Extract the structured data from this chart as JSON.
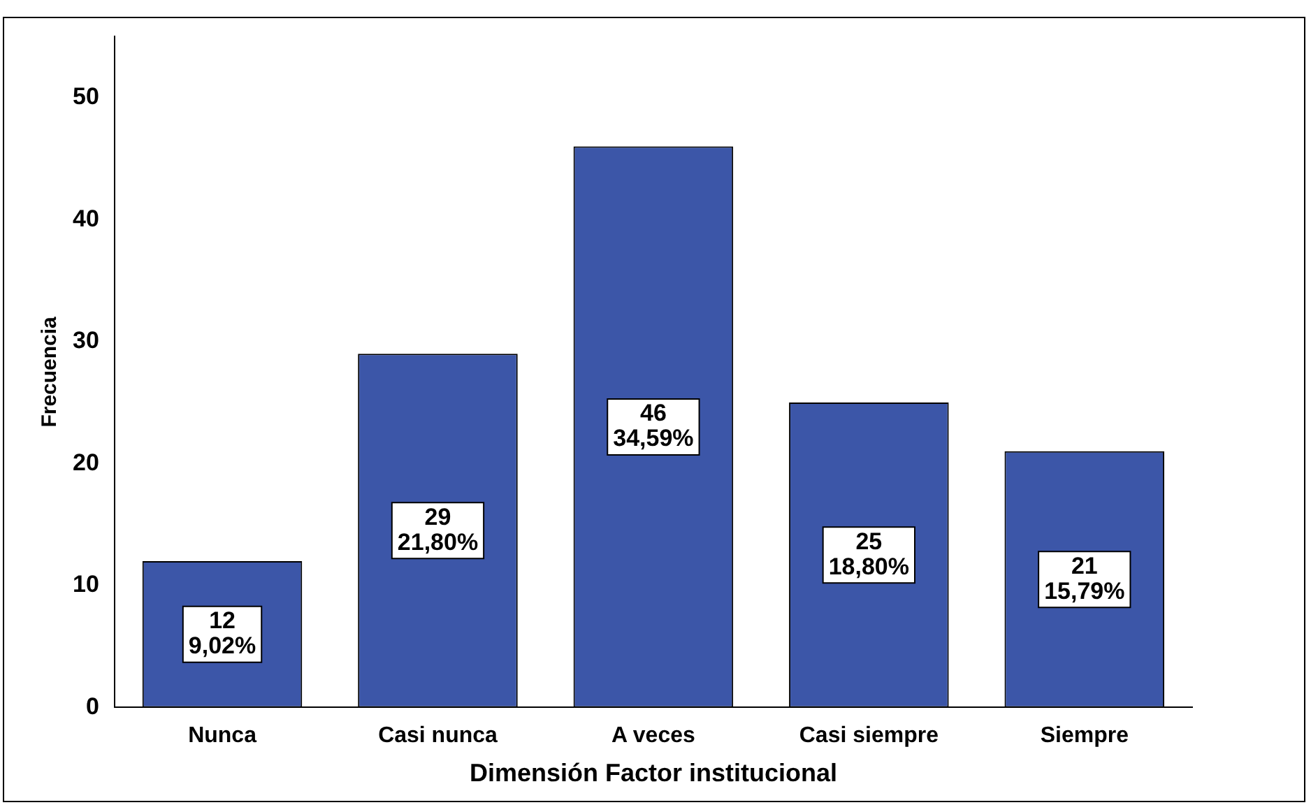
{
  "chart_data": {
    "type": "bar",
    "xlabel": "Dimensión Factor institucional",
    "ylabel": "Frecuencia",
    "categories": [
      "Nunca",
      "Casi nunca",
      "A veces",
      "Casi siempre",
      "Siempre"
    ],
    "values": [
      12,
      29,
      46,
      25,
      21
    ],
    "value_labels": [
      "12\n9,02%",
      "29\n21,80%",
      "46\n34,59%",
      "25\n18,80%",
      "21\n15,79%"
    ],
    "color": "#3c56a8",
    "ylim": [
      0,
      55
    ],
    "yticks": [
      0,
      10,
      20,
      30,
      40,
      50
    ],
    "grid": false,
    "legend": false
  }
}
